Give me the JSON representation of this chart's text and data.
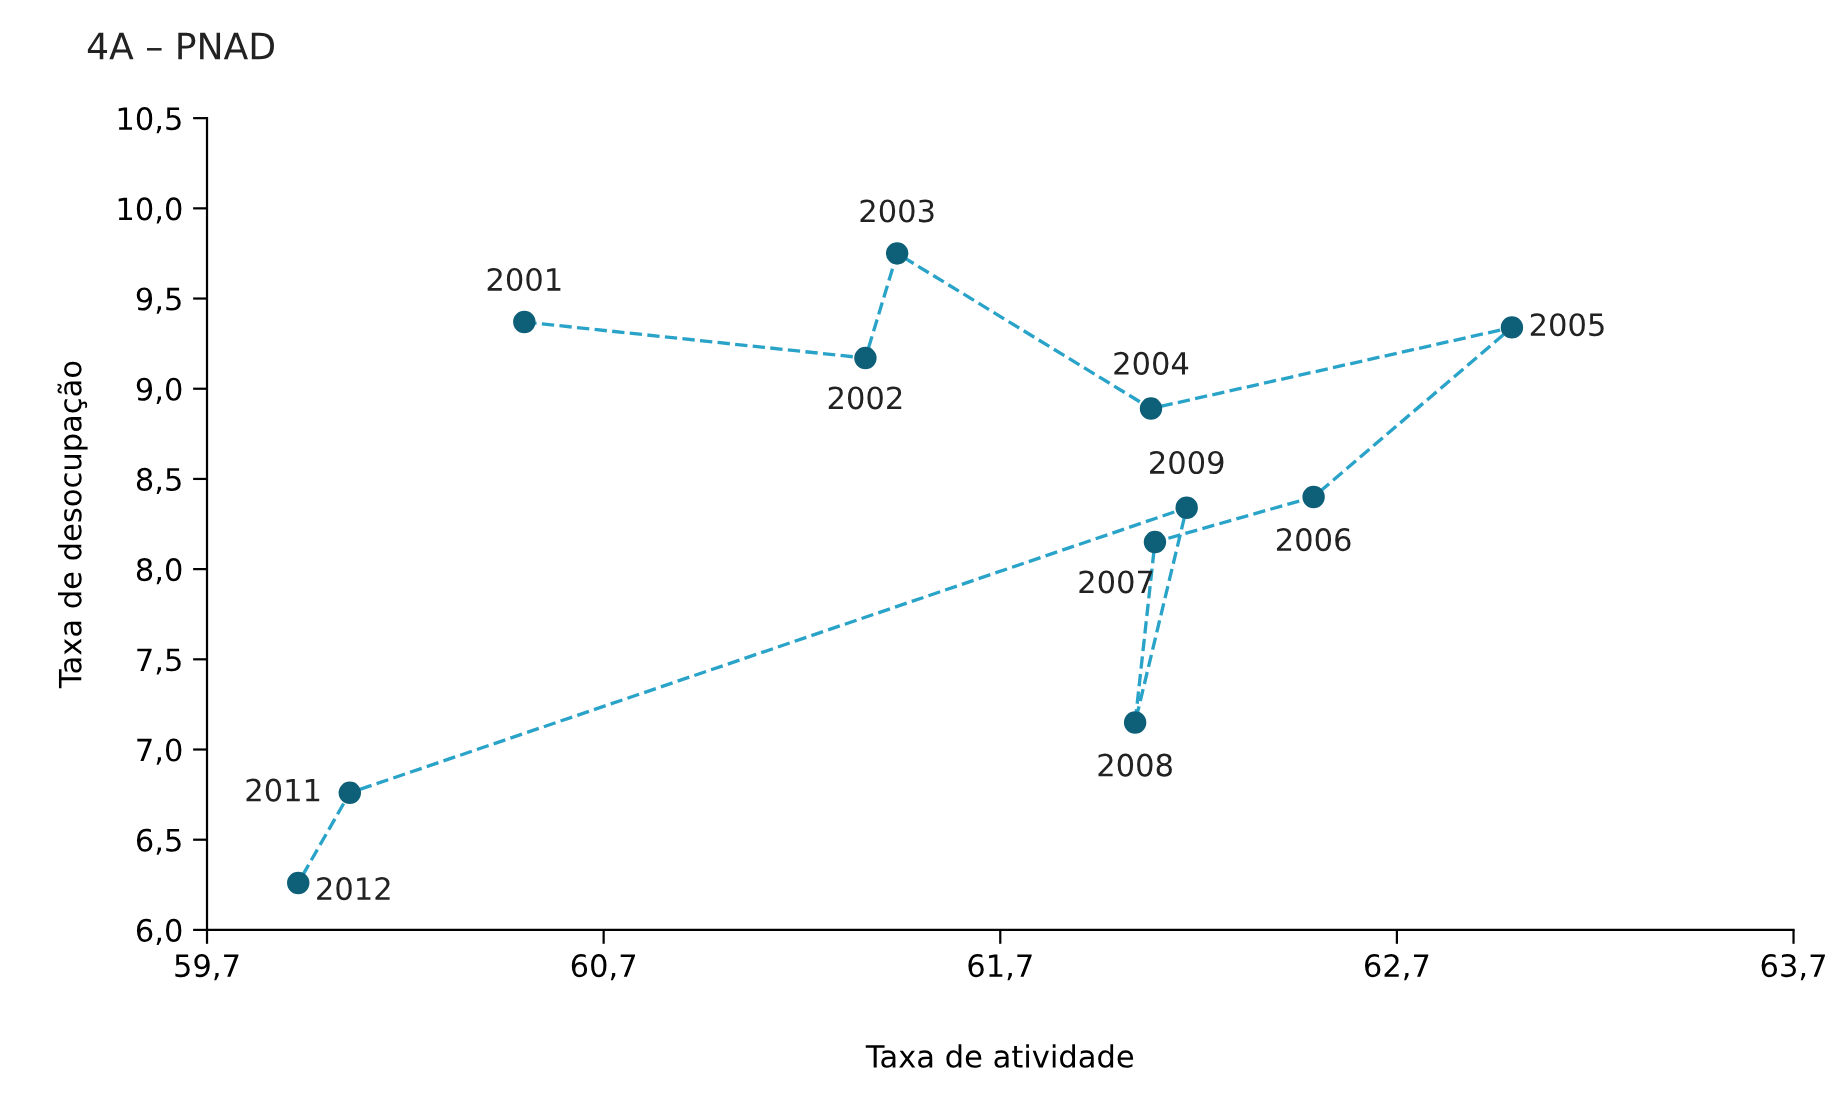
{
  "chart_data": {
    "type": "line",
    "title": "4A – PNAD",
    "xlabel": "Taxa de atividade",
    "ylabel": "Taxa de desocupação",
    "x": [
      60.5,
      61.36,
      61.44,
      62.08,
      62.99,
      62.49,
      62.09,
      62.04,
      62.17,
      60.06,
      59.93
    ],
    "series": [
      {
        "color": "#2aa3c9",
        "colors": [
          "#0e5f78",
          "#0e5f78",
          "#0e5f78",
          "#0e5f78",
          "#0e5f78",
          "#0e5f78",
          "#0e5f78",
          "#0e5f78",
          "#0e5f78",
          "#0e5f78",
          "#0e5f78"
        ],
        "values": [
          9.37,
          9.17,
          9.75,
          8.89,
          9.34,
          8.4,
          8.15,
          7.15,
          8.34,
          6.76,
          6.26
        ]
      }
    ],
    "marker": "circle",
    "line_style": "dashed",
    "grid": false,
    "xlim": [
      59.7,
      63.7
    ],
    "ylim": [
      6.0,
      10.5
    ],
    "xticks": [
      {
        "value": 59.7,
        "label": "59,7"
      },
      {
        "value": 60.7,
        "label": "60,7"
      },
      {
        "value": 61.7,
        "label": "61,7"
      },
      {
        "value": 62.7,
        "label": "62,7"
      },
      {
        "value": 63.7,
        "label": "63,7"
      }
    ],
    "yticks": [
      {
        "value": 6.0,
        "label": "6,0"
      },
      {
        "value": 6.5,
        "label": "6,5"
      },
      {
        "value": 7.0,
        "label": "7,0"
      },
      {
        "value": 7.5,
        "label": "7,5"
      },
      {
        "value": 8.0,
        "label": "8,0"
      },
      {
        "value": 8.5,
        "label": "8,5"
      },
      {
        "value": 9.0,
        "label": "9,0"
      },
      {
        "value": 9.5,
        "label": "9,5"
      },
      {
        "value": 10.0,
        "label": "10,0"
      },
      {
        "value": 10.5,
        "label": "10,5"
      }
    ],
    "annotations": [
      {
        "text": "2001",
        "x": 60.5,
        "y": 9.37
      },
      {
        "text": "2002",
        "x": 61.36,
        "y": 9.17
      },
      {
        "text": "2003",
        "x": 61.44,
        "y": 9.75
      },
      {
        "text": "2004",
        "x": 62.08,
        "y": 8.89
      },
      {
        "text": "2005",
        "x": 62.99,
        "y": 9.34
      },
      {
        "text": "2006",
        "x": 62.49,
        "y": 8.4
      },
      {
        "text": "2007",
        "x": 62.09,
        "y": 8.15
      },
      {
        "text": "2008",
        "x": 62.04,
        "y": 7.15
      },
      {
        "text": "2009",
        "x": 62.17,
        "y": 8.34
      },
      {
        "text": "2011",
        "x": 60.06,
        "y": 6.76
      },
      {
        "text": "2012",
        "x": 59.93,
        "y": 6.26
      }
    ]
  }
}
